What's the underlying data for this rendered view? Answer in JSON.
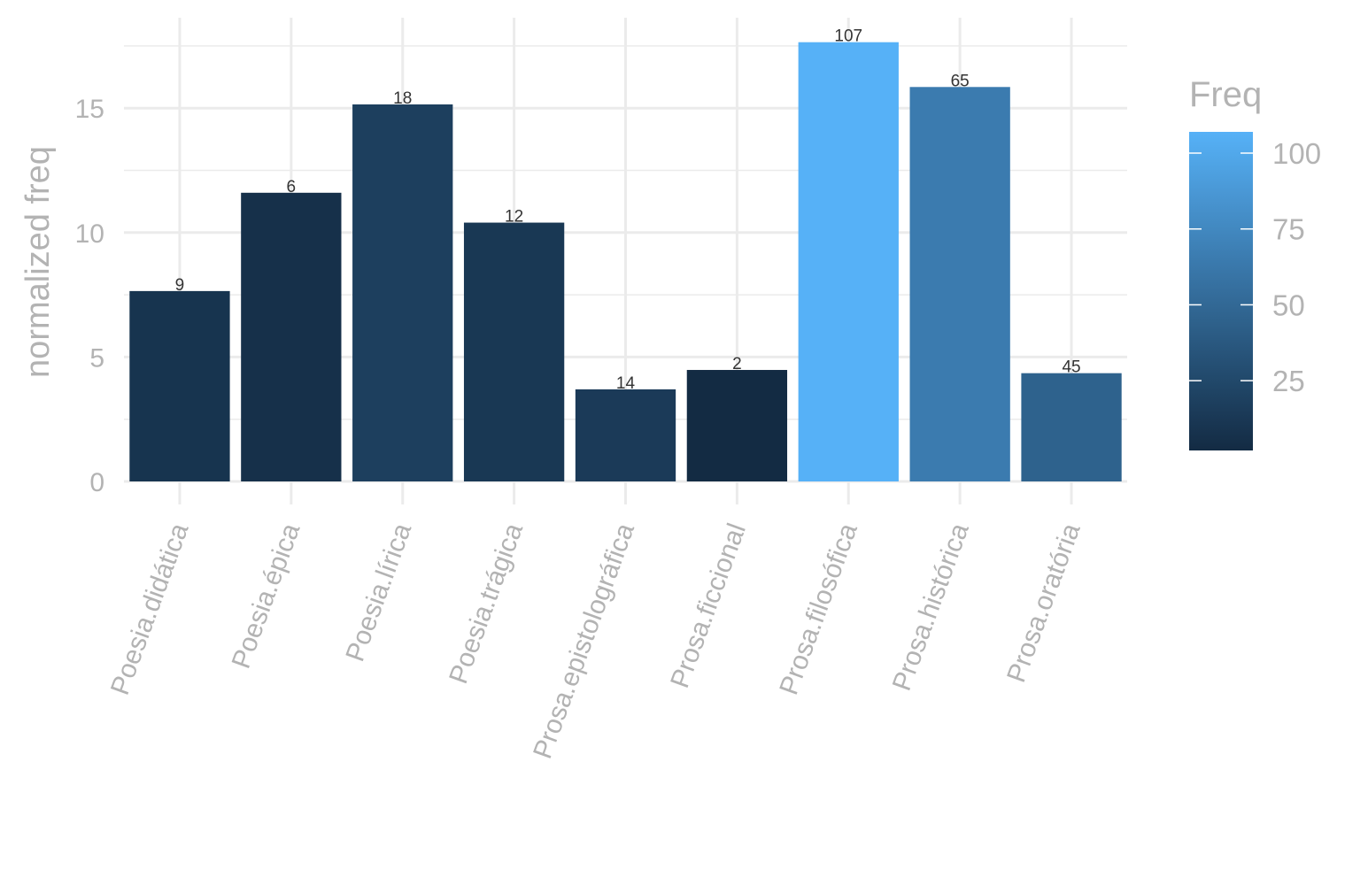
{
  "chart_data": {
    "type": "bar",
    "title": "",
    "xlabel": "",
    "ylabel": "normalized freq",
    "ylim": [
      0,
      17.7
    ],
    "y_ticks": [
      0,
      5,
      10,
      15
    ],
    "grid": true,
    "categories": [
      "Poesia.didática",
      "Poesia.épica",
      "Poesia.lírica",
      "Poesia.trágica",
      "Prosa.epistolográfica",
      "Prosa.ficcional",
      "Prosa.filosófica",
      "Prosa.histórica",
      "Prosa.oratória"
    ],
    "values": [
      7.65,
      11.6,
      15.15,
      10.4,
      3.7,
      4.48,
      17.65,
      15.85,
      4.35
    ],
    "labels": [
      "9",
      "6",
      "18",
      "12",
      "14",
      "2",
      "107",
      "65",
      "45"
    ],
    "fill_by": "Freq",
    "freq": [
      9,
      6,
      18,
      12,
      14,
      2,
      107,
      65,
      45
    ],
    "legend": {
      "title": "Freq",
      "placement": "right",
      "type": "colorbar",
      "range": [
        2,
        107
      ],
      "ticks": [
        25,
        50,
        75,
        100
      ],
      "color_low": "#132b43",
      "color_high": "#56b1f7"
    }
  }
}
